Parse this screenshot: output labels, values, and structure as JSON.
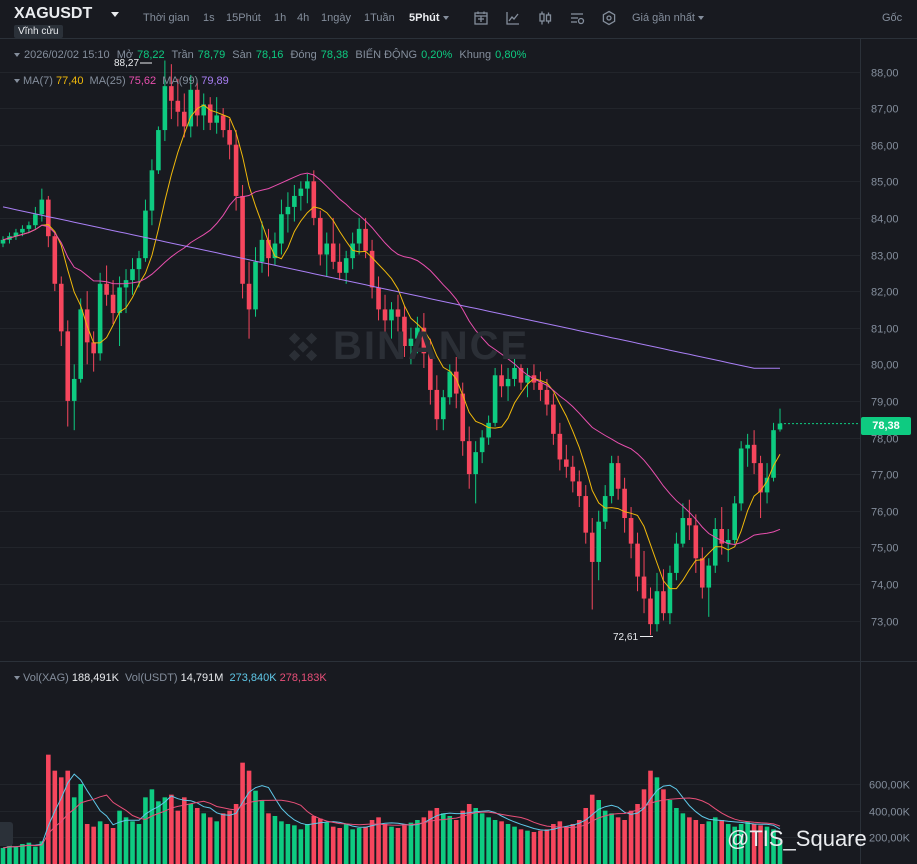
{
  "header": {
    "symbol": "XAGUSDT",
    "contract": "Vĩnh cửu",
    "timeframes": [
      {
        "label": "Thời gian",
        "active": false
      },
      {
        "label": "1s",
        "active": false
      },
      {
        "label": "15Phút",
        "active": false
      },
      {
        "label": "1h",
        "active": false
      },
      {
        "label": "4h",
        "active": false
      },
      {
        "label": "1ngày",
        "active": false
      },
      {
        "label": "1Tuần",
        "active": false
      },
      {
        "label": "5Phút",
        "active": true
      }
    ],
    "price_type": "Giá gần nhất",
    "origin": "Gốc",
    "icons": [
      "indicator-icon",
      "line-chart-icon",
      "candle-type-icon",
      "settings-list-icon",
      "hexagon-settings-icon"
    ]
  },
  "ohlc": {
    "datetime": "2026/02/02 15:10",
    "open_label": "Mở",
    "open": "78,22",
    "high_label": "Trần",
    "high": "78,79",
    "low_label": "Sàn",
    "low": "78,16",
    "close_label": "Đóng",
    "close": "78,38",
    "change_label": "BIẾN ĐỘNG",
    "change": "0,20%",
    "range_label": "Khung",
    "range": "0,80%"
  },
  "ma": {
    "ma7_label": "MA(7)",
    "ma7": "77,40",
    "ma25_label": "MA(25)",
    "ma25": "75,62",
    "ma99_label": "MA(99)",
    "ma99": "79,89"
  },
  "volume": {
    "vol_label": "Vol(XAG)",
    "vol": "188,491K",
    "volusdt_label": "Vol(USDT)",
    "volusdt": "14,791M",
    "ma_a": "273,840K",
    "ma_b": "278,183K"
  },
  "colors": {
    "up": "#0ecb81",
    "down": "#f6465d",
    "ma7": "#f0b90b",
    "ma25": "#e84fae",
    "ma99": "#a97ff5",
    "vol_ma_a": "#5fc8e8",
    "vol_ma_b": "#e84f78",
    "background": "#181a20"
  },
  "current_price": "78,38",
  "watermark": "BINANCE",
  "brand": "@TIS_Square",
  "chart_data": {
    "type": "candlestick",
    "price_axis": {
      "ticks": [
        "88,00",
        "87,00",
        "86,00",
        "85,00",
        "84,00",
        "83,00",
        "82,00",
        "81,00",
        "80,00",
        "79,00",
        "78,00",
        "77,00",
        "76,00",
        "75,00",
        "74,00",
        "73,00"
      ],
      "range": [
        72.4,
        88.5
      ]
    },
    "volume_axis": {
      "ticks": [
        "600,00K",
        "400,00K",
        "200,00K"
      ]
    },
    "annotations": {
      "high_label": "88,27",
      "low_label": "72,61"
    },
    "candles": [
      [
        83.3,
        83.5,
        83.2,
        83.4,
        120
      ],
      [
        83.4,
        83.6,
        83.3,
        83.5,
        140
      ],
      [
        83.5,
        83.7,
        83.4,
        83.6,
        130
      ],
      [
        83.6,
        83.8,
        83.5,
        83.7,
        150
      ],
      [
        83.7,
        83.9,
        83.6,
        83.8,
        160
      ],
      [
        83.8,
        84.3,
        83.7,
        84.1,
        130
      ],
      [
        84.1,
        84.8,
        83.9,
        84.5,
        170
      ],
      [
        84.5,
        84.6,
        83.2,
        83.5,
        820
      ],
      [
        83.5,
        83.6,
        82.0,
        82.2,
        700
      ],
      [
        82.2,
        82.4,
        80.5,
        80.9,
        650
      ],
      [
        80.9,
        81.2,
        78.3,
        79.0,
        700
      ],
      [
        79.0,
        80.0,
        78.2,
        79.6,
        500
      ],
      [
        79.6,
        81.8,
        79.5,
        81.5,
        600
      ],
      [
        81.5,
        82.0,
        80.0,
        80.6,
        300
      ],
      [
        80.6,
        80.9,
        79.8,
        80.3,
        280
      ],
      [
        80.3,
        82.5,
        80.1,
        82.2,
        320
      ],
      [
        82.2,
        82.7,
        81.6,
        81.9,
        300
      ],
      [
        81.9,
        82.3,
        81.1,
        81.4,
        270
      ],
      [
        81.4,
        82.4,
        80.5,
        82.1,
        400
      ],
      [
        82.1,
        82.6,
        81.4,
        82.3,
        350
      ],
      [
        82.3,
        82.9,
        81.9,
        82.6,
        320
      ],
      [
        82.6,
        83.1,
        82.1,
        82.9,
        300
      ],
      [
        82.9,
        84.5,
        82.8,
        84.2,
        500
      ],
      [
        84.2,
        85.6,
        83.8,
        85.3,
        560
      ],
      [
        85.3,
        86.5,
        85.2,
        86.4,
        470
      ],
      [
        86.4,
        88.3,
        86.1,
        87.6,
        500
      ],
      [
        87.6,
        88.2,
        86.7,
        87.2,
        520
      ],
      [
        87.2,
        87.8,
        86.5,
        86.9,
        400
      ],
      [
        86.9,
        87.4,
        86.2,
        86.5,
        500
      ],
      [
        86.5,
        87.9,
        86.2,
        87.5,
        450
      ],
      [
        87.5,
        87.7,
        86.5,
        86.8,
        420
      ],
      [
        86.8,
        87.4,
        86.4,
        87.1,
        380
      ],
      [
        87.1,
        87.3,
        86.4,
        86.6,
        350
      ],
      [
        86.6,
        87.3,
        86.3,
        86.8,
        320
      ],
      [
        86.8,
        87.0,
        86.2,
        86.4,
        380
      ],
      [
        86.4,
        86.7,
        85.6,
        86.0,
        400
      ],
      [
        86.0,
        86.4,
        84.2,
        84.6,
        450
      ],
      [
        84.6,
        84.9,
        81.8,
        82.2,
        760
      ],
      [
        82.2,
        82.8,
        80.7,
        81.5,
        700
      ],
      [
        81.5,
        83.2,
        81.3,
        82.8,
        550
      ],
      [
        82.8,
        83.9,
        82.5,
        83.4,
        480
      ],
      [
        83.4,
        83.7,
        82.4,
        82.9,
        380
      ],
      [
        82.9,
        83.6,
        82.7,
        83.3,
        360
      ],
      [
        83.3,
        84.5,
        83.0,
        84.1,
        320
      ],
      [
        84.1,
        84.7,
        83.6,
        84.3,
        300
      ],
      [
        84.3,
        84.9,
        83.9,
        84.6,
        290
      ],
      [
        84.6,
        85.0,
        84.2,
        84.8,
        260
      ],
      [
        84.8,
        85.2,
        84.4,
        85.0,
        300
      ],
      [
        85.0,
        85.3,
        83.8,
        84.0,
        360
      ],
      [
        84.0,
        84.2,
        82.7,
        83.0,
        340
      ],
      [
        83.0,
        83.6,
        82.4,
        83.3,
        310
      ],
      [
        83.3,
        84.0,
        82.6,
        82.8,
        280
      ],
      [
        82.8,
        83.3,
        82.3,
        82.5,
        270
      ],
      [
        82.5,
        83.1,
        82.2,
        82.9,
        300
      ],
      [
        82.9,
        83.6,
        82.6,
        83.3,
        260
      ],
      [
        83.3,
        84.0,
        83.0,
        83.7,
        270
      ],
      [
        83.7,
        84.0,
        82.9,
        83.1,
        280
      ],
      [
        83.1,
        83.4,
        81.8,
        82.1,
        330
      ],
      [
        82.1,
        82.4,
        81.2,
        81.5,
        350
      ],
      [
        81.5,
        81.9,
        80.8,
        81.2,
        300
      ],
      [
        81.2,
        81.7,
        80.7,
        81.5,
        280
      ],
      [
        81.5,
        81.9,
        80.9,
        81.3,
        270
      ],
      [
        81.3,
        81.6,
        80.2,
        80.5,
        290
      ],
      [
        80.5,
        81.0,
        80.0,
        80.7,
        310
      ],
      [
        80.7,
        81.3,
        80.3,
        81.0,
        330
      ],
      [
        81.0,
        81.4,
        79.9,
        80.3,
        350
      ],
      [
        80.3,
        80.7,
        78.9,
        79.3,
        400
      ],
      [
        79.3,
        79.7,
        78.2,
        78.5,
        420
      ],
      [
        78.5,
        79.3,
        78.2,
        79.1,
        380
      ],
      [
        79.1,
        80.0,
        78.9,
        79.8,
        360
      ],
      [
        79.8,
        80.2,
        78.8,
        79.2,
        330
      ],
      [
        79.2,
        79.5,
        77.5,
        77.9,
        400
      ],
      [
        77.9,
        78.3,
        76.6,
        77.0,
        450
      ],
      [
        77.0,
        77.9,
        76.2,
        77.6,
        420
      ],
      [
        77.6,
        78.2,
        77.3,
        78.0,
        380
      ],
      [
        78.0,
        78.6,
        77.8,
        78.4,
        350
      ],
      [
        78.4,
        79.9,
        78.3,
        79.7,
        330
      ],
      [
        79.7,
        80.0,
        79.1,
        79.4,
        320
      ],
      [
        79.4,
        79.9,
        79.0,
        79.6,
        300
      ],
      [
        79.6,
        80.2,
        79.4,
        79.9,
        280
      ],
      [
        79.9,
        80.0,
        79.3,
        79.5,
        260
      ],
      [
        79.5,
        79.9,
        79.1,
        79.7,
        250
      ],
      [
        79.7,
        80.0,
        79.3,
        79.5,
        240
      ],
      [
        79.5,
        79.8,
        79.0,
        79.3,
        250
      ],
      [
        79.3,
        79.6,
        78.6,
        78.9,
        260
      ],
      [
        78.9,
        79.2,
        77.8,
        78.1,
        300
      ],
      [
        78.1,
        78.4,
        77.1,
        77.4,
        320
      ],
      [
        77.4,
        77.8,
        76.9,
        77.2,
        280
      ],
      [
        77.2,
        77.5,
        76.5,
        76.8,
        300
      ],
      [
        76.8,
        77.1,
        76.1,
        76.4,
        330
      ],
      [
        76.4,
        76.7,
        75.1,
        75.4,
        420
      ],
      [
        75.4,
        75.8,
        73.3,
        74.6,
        520
      ],
      [
        74.6,
        76.0,
        74.1,
        75.7,
        480
      ],
      [
        75.7,
        76.7,
        75.5,
        76.4,
        400
      ],
      [
        76.4,
        77.5,
        76.2,
        77.3,
        380
      ],
      [
        77.3,
        77.5,
        76.3,
        76.6,
        350
      ],
      [
        76.6,
        76.9,
        75.4,
        75.8,
        330
      ],
      [
        75.8,
        76.1,
        74.7,
        75.1,
        400
      ],
      [
        75.1,
        75.4,
        73.8,
        74.2,
        450
      ],
      [
        74.2,
        74.9,
        73.2,
        73.6,
        560
      ],
      [
        73.6,
        73.9,
        72.6,
        72.9,
        700
      ],
      [
        72.9,
        74.3,
        72.7,
        73.8,
        650
      ],
      [
        73.8,
        74.4,
        73.0,
        73.2,
        560
      ],
      [
        73.2,
        74.5,
        72.9,
        74.3,
        480
      ],
      [
        74.3,
        75.4,
        74.1,
        75.1,
        420
      ],
      [
        75.1,
        76.2,
        75.0,
        75.8,
        380
      ],
      [
        75.8,
        76.3,
        75.2,
        75.6,
        350
      ],
      [
        75.6,
        75.9,
        74.3,
        74.7,
        330
      ],
      [
        74.7,
        75.0,
        73.6,
        73.9,
        300
      ],
      [
        73.9,
        74.7,
        73.1,
        74.5,
        320
      ],
      [
        74.5,
        75.8,
        74.3,
        75.5,
        350
      ],
      [
        75.5,
        76.1,
        74.8,
        75.1,
        330
      ],
      [
        75.1,
        75.5,
        74.6,
        75.2,
        300
      ],
      [
        75.2,
        76.4,
        75.1,
        76.2,
        280
      ],
      [
        76.2,
        77.9,
        76.0,
        77.7,
        300
      ],
      [
        77.7,
        78.1,
        77.2,
        77.8,
        320
      ],
      [
        77.8,
        78.2,
        77.0,
        77.3,
        300
      ],
      [
        77.3,
        77.5,
        75.8,
        76.5,
        290
      ],
      [
        76.5,
        77.3,
        76.2,
        76.9,
        280
      ],
      [
        76.9,
        78.4,
        76.8,
        78.2,
        260
      ],
      [
        78.22,
        78.79,
        78.16,
        78.38,
        180
      ]
    ]
  }
}
